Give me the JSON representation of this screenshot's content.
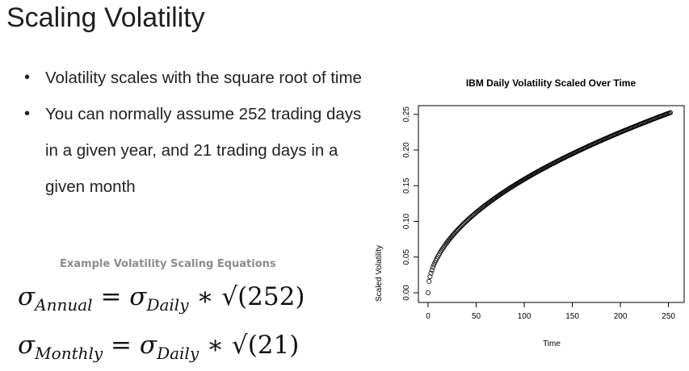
{
  "slide": {
    "title": "Scaling Volatility",
    "bullets": [
      "Volatility scales with the square root of time",
      "You can normally assume 252 trading days in a given year, and 21 trading days in a given month"
    ],
    "equations_caption": "Example Volatility Scaling Equations",
    "equations": [
      {
        "lhs_symbol": "σ",
        "lhs_sub": "Annual",
        "eq": "=",
        "rhs_symbol": "σ",
        "rhs_sub": "Daily",
        "op": "∗",
        "radical": "√",
        "arg": "(252)"
      },
      {
        "lhs_symbol": "σ",
        "lhs_sub": "Monthly",
        "eq": "=",
        "rhs_symbol": "σ",
        "rhs_sub": "Daily",
        "op": "∗",
        "radical": "√",
        "arg": "(21)"
      }
    ]
  },
  "chart_data": {
    "type": "scatter",
    "title": "IBM Daily Volatility Scaled Over Time",
    "xlabel": "Time",
    "ylabel": "Scaled Volatility",
    "xlim": [
      0,
      252
    ],
    "ylim": [
      0,
      0.252
    ],
    "xticks": [
      0,
      50,
      100,
      150,
      200,
      250
    ],
    "xtick_labels": [
      "0",
      "50",
      "100",
      "150",
      "200",
      "250"
    ],
    "yticks": [
      0,
      0.05,
      0.1,
      0.15,
      0.2,
      0.25
    ],
    "ytick_labels": [
      "0.00",
      "0.05",
      "0.10",
      "0.15",
      "0.20",
      "0.25"
    ],
    "daily_volatility": 0.0159,
    "x_range": [
      0,
      252
    ],
    "formula": "y = daily_volatility * sqrt(x)",
    "marker": "open-circle",
    "grid": false,
    "colors": {
      "points": "#000000",
      "axes": "#000000"
    }
  }
}
